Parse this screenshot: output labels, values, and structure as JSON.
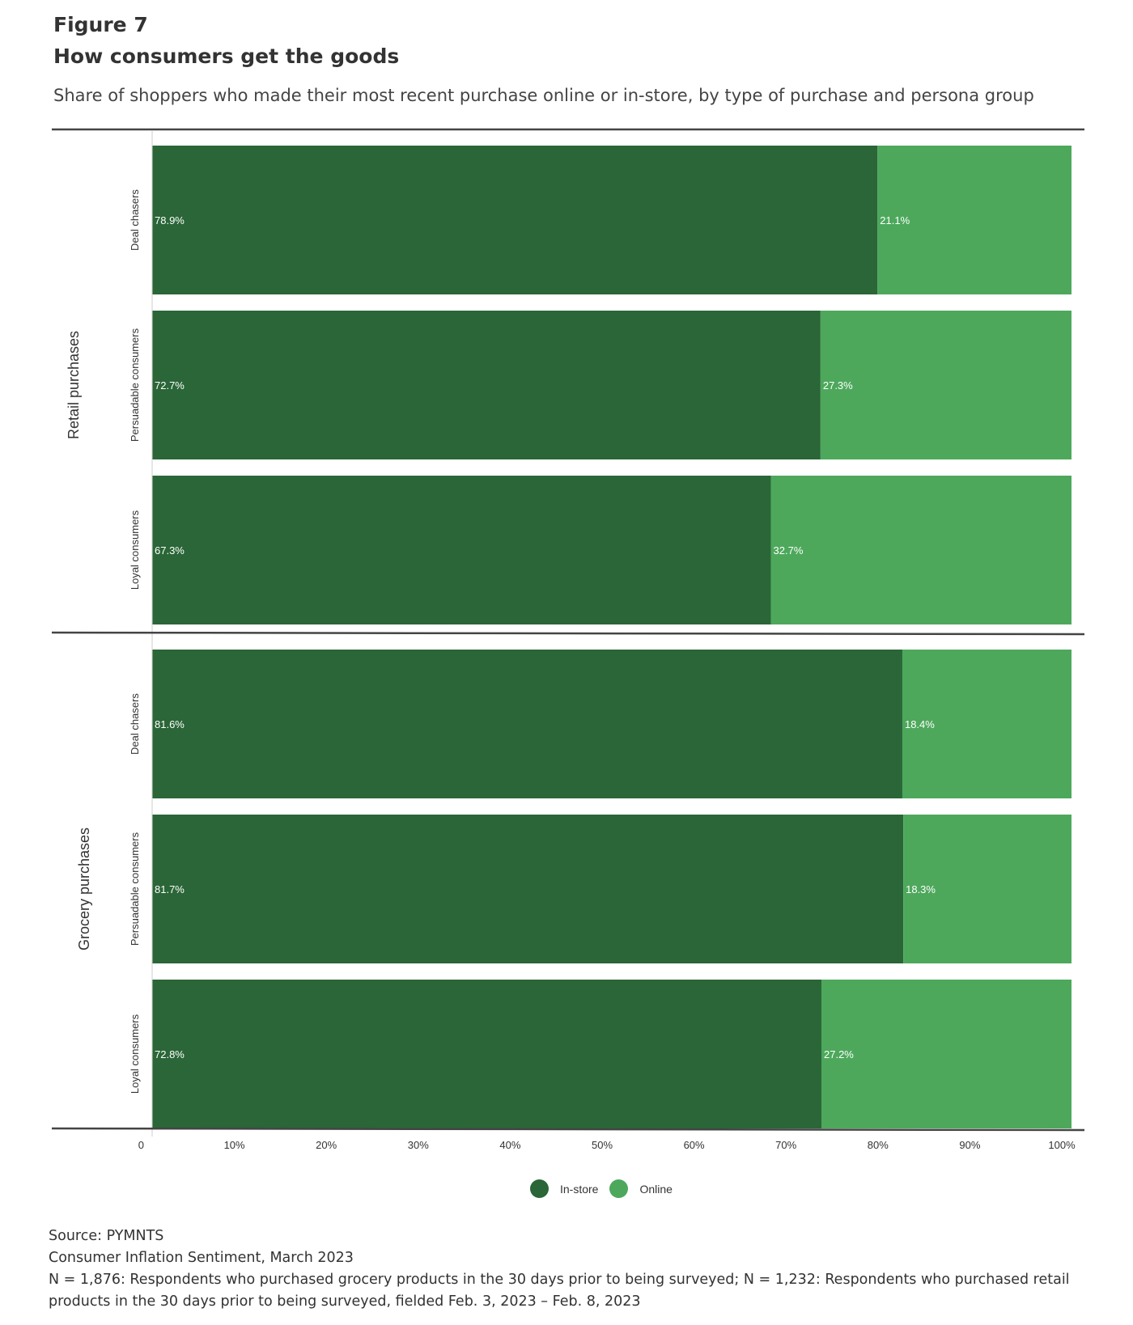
{
  "figure": {
    "label": "Figure 7",
    "title": "How consumers get the goods",
    "subtitle": "Share of shoppers who made their most recent purchase online or in-store, by type of purchase and persona group"
  },
  "chart_data": {
    "type": "bar",
    "orientation": "horizontal",
    "stacked": true,
    "groups": [
      {
        "name": "Retail purchases",
        "categories": [
          "Deal chasers",
          "Persuadable consumers",
          "Loyal consumers"
        ],
        "series": [
          {
            "name": "In-store",
            "values": [
              78.9,
              72.7,
              67.3
            ],
            "labels": [
              "78.9%",
              "72.7%",
              "67.3%"
            ]
          },
          {
            "name": "Online",
            "values": [
              21.1,
              27.3,
              32.7
            ],
            "labels": [
              "21.1%",
              "27.3%",
              "32.7%"
            ]
          }
        ]
      },
      {
        "name": "Grocery purchases",
        "categories": [
          "Deal chasers",
          "Persuadable consumers",
          "Loyal consumers"
        ],
        "series": [
          {
            "name": "In-store",
            "values": [
              81.6,
              81.7,
              72.8
            ],
            "labels": [
              "81.6%",
              "81.7%",
              "72.8%"
            ]
          },
          {
            "name": "Online",
            "values": [
              18.4,
              18.3,
              27.2
            ],
            "labels": [
              "18.4%",
              "18.3%",
              "27.2%"
            ]
          }
        ]
      }
    ],
    "xlim": [
      0,
      100
    ],
    "xticks": [
      "0",
      "10%",
      "20%",
      "30%",
      "40%",
      "50%",
      "60%",
      "70%",
      "80%",
      "90%",
      "100%"
    ],
    "legend": {
      "position": "bottom-center",
      "items": [
        {
          "name": "In-store",
          "color": "#2a6637"
        },
        {
          "name": "Online",
          "color": "#4da85c"
        }
      ]
    },
    "colors": {
      "instore": "#2a6637",
      "online": "#4da85c",
      "axis_line": "#444444"
    }
  },
  "footnotes": [
    "Source: PYMNTS",
    "Consumer Inflation Sentiment, March 2023",
    "N = 1,876: Respondents who purchased grocery products in the 30 days prior to being surveyed; N = 1,232: Respondents who purchased retail products in the 30 days prior to being surveyed, fielded Feb. 3, 2023 – Feb. 8, 2023"
  ]
}
